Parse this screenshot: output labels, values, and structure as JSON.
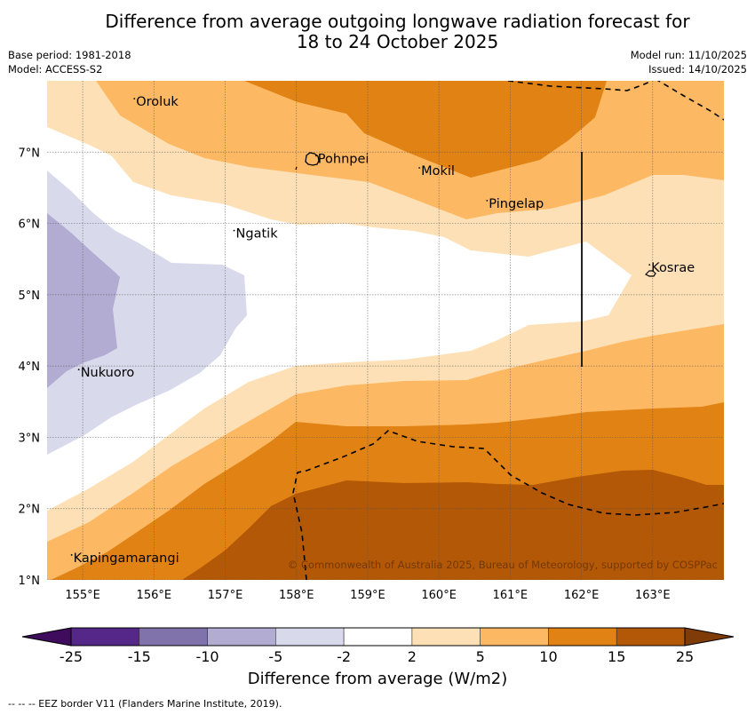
{
  "header": {
    "title_line1": "Difference from average outgoing longwave radiation forecast for",
    "title_line2": "18 to 24 October 2025",
    "base_period": "Base period: 1981-2018",
    "model": "Model: ACCESS-S2",
    "model_run": "Model run: 11/10/2025",
    "issued": "Issued: 14/10/2025"
  },
  "map": {
    "lon_range": [
      154.5,
      164.0
    ],
    "lat_range": [
      1.0,
      8.0
    ],
    "lon_ticks": [
      "155°E",
      "156°E",
      "157°E",
      "158°E",
      "159°E",
      "160°E",
      "161°E",
      "162°E",
      "163°E"
    ],
    "lat_ticks": [
      "1°N",
      "2°N",
      "3°N",
      "4°N",
      "5°N",
      "6°N",
      "7°N"
    ],
    "places": [
      {
        "name": "Oroluk",
        "lon": 155.75,
        "lat": 7.65
      },
      {
        "name": "Pohnpei",
        "lon": 158.3,
        "lat": 6.85
      },
      {
        "name": "Mokil",
        "lon": 159.75,
        "lat": 6.68
      },
      {
        "name": "Pingelap",
        "lon": 160.7,
        "lat": 6.22
      },
      {
        "name": "Ngatik",
        "lon": 157.15,
        "lat": 5.8
      },
      {
        "name": "Kosrae",
        "lon": 162.98,
        "lat": 5.32
      },
      {
        "name": "Nukuoro",
        "lon": 154.97,
        "lat": 3.85
      },
      {
        "name": "Kapingamarangi",
        "lon": 154.87,
        "lat": 1.25
      }
    ],
    "copyright": "© Commonwealth of Australia 2025, Bureau of Meteorology, supported by COSPPac"
  },
  "colorbar": {
    "label": "Difference from average (W/m2)",
    "ticks": [
      "-25",
      "-15",
      "-10",
      "-5",
      "-2",
      "2",
      "5",
      "10",
      "15",
      "25"
    ],
    "bins": [
      {
        "range": "< -25",
        "color": "#3f0b5c"
      },
      {
        "range": "-25 to -15",
        "color": "#542788"
      },
      {
        "range": "-15 to -10",
        "color": "#8073ac"
      },
      {
        "range": "-10 to -5",
        "color": "#b2abd2"
      },
      {
        "range": "-5 to -2",
        "color": "#d8daeb"
      },
      {
        "range": "-2 to 2",
        "color": "#ffffff"
      },
      {
        "range": "2 to 5",
        "color": "#fee0b6"
      },
      {
        "range": "5 to 10",
        "color": "#fdb863"
      },
      {
        "range": "10 to 15",
        "color": "#e08214"
      },
      {
        "range": "15 to 25",
        "color": "#b35806"
      },
      {
        "range": "> 25",
        "color": "#7f3b08"
      }
    ]
  },
  "footnote": "--  --  -- EEZ border V11 (Flanders Marine Institute, 2019)."
}
